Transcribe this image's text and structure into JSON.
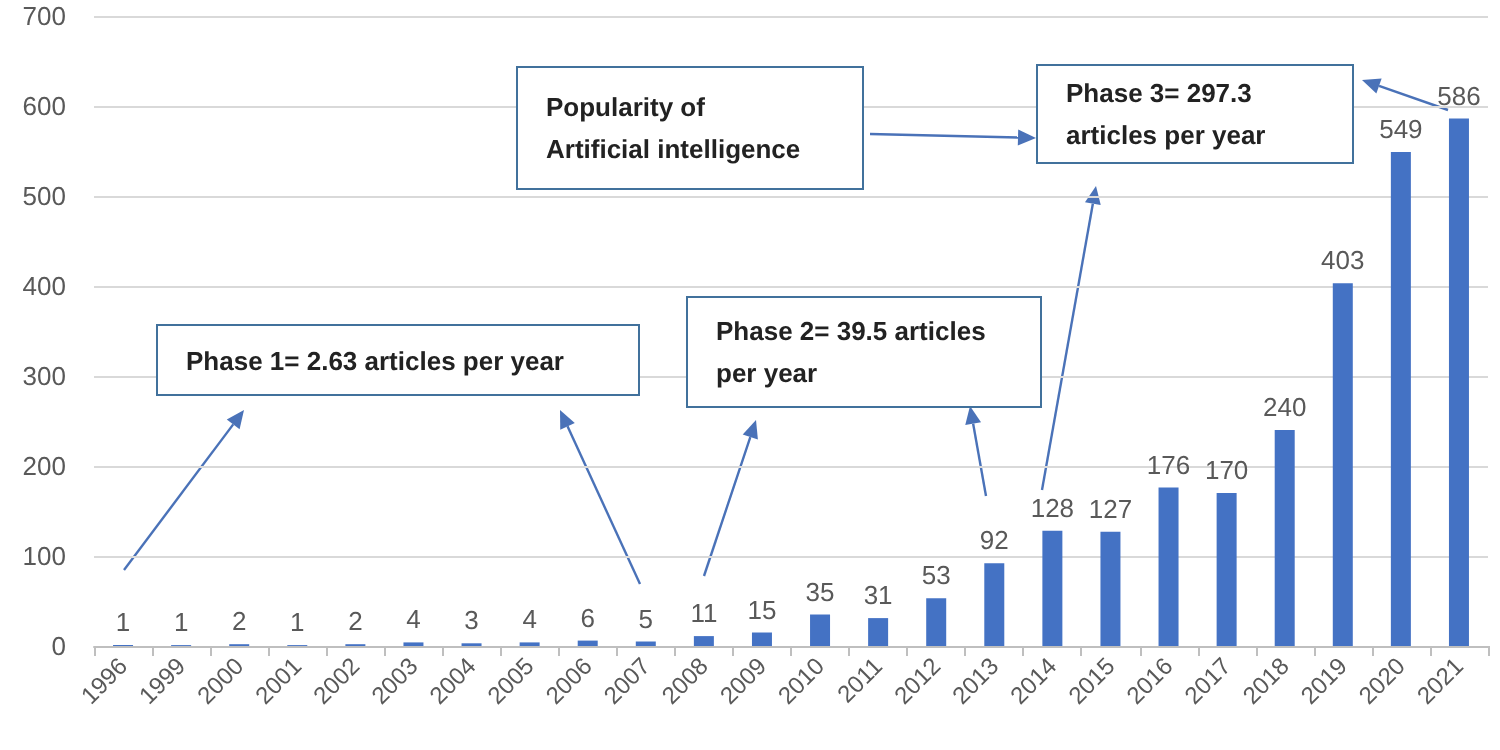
{
  "chart_data": {
    "type": "bar",
    "categories": [
      "1996",
      "1999",
      "2000",
      "2001",
      "2002",
      "2003",
      "2004",
      "2005",
      "2006",
      "2007",
      "2008",
      "2009",
      "2010",
      "2011",
      "2012",
      "2013",
      "2014",
      "2015",
      "2016",
      "2017",
      "2018",
      "2019",
      "2020",
      "2021"
    ],
    "values": [
      1,
      1,
      2,
      1,
      2,
      4,
      3,
      4,
      6,
      5,
      11,
      15,
      35,
      31,
      53,
      92,
      128,
      127,
      176,
      170,
      240,
      403,
      549,
      586
    ],
    "color": "#4472c4",
    "ylim": [
      0,
      700
    ],
    "yticks": [
      0,
      100,
      200,
      300,
      400,
      500,
      600,
      700
    ],
    "grid": "y",
    "data_labels": true,
    "annotations": [
      "Phase 1= 2.63 articles per year",
      "Phase 2= 39.5 articles per year",
      "Phase 3= 297.3 articles per year",
      "Popularity of Artificial intelligence"
    ]
  }
}
